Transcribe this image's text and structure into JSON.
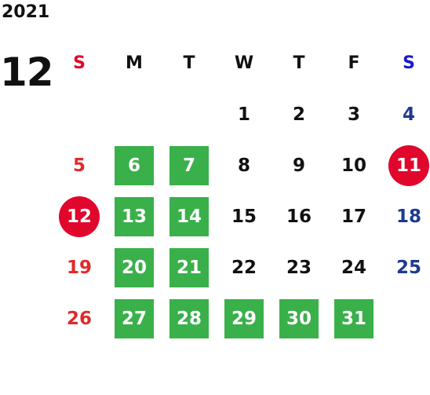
{
  "year": "2021",
  "month": "12",
  "weekdays": [
    {
      "label": "S",
      "color": "#e0062c"
    },
    {
      "label": "M",
      "color": "#111111"
    },
    {
      "label": "T",
      "color": "#111111"
    },
    {
      "label": "W",
      "color": "#111111"
    },
    {
      "label": "T",
      "color": "#111111"
    },
    {
      "label": "F",
      "color": "#111111"
    },
    {
      "label": "S",
      "color": "#1a1acc"
    }
  ],
  "weeks": [
    [
      null,
      null,
      null,
      {
        "d": "1"
      },
      {
        "d": "2"
      },
      {
        "d": "3"
      },
      {
        "d": "4"
      }
    ],
    [
      {
        "d": "5"
      },
      {
        "d": "6",
        "mark": "green"
      },
      {
        "d": "7",
        "mark": "green"
      },
      {
        "d": "8"
      },
      {
        "d": "9"
      },
      {
        "d": "10"
      },
      {
        "d": "11",
        "mark": "red"
      }
    ],
    [
      {
        "d": "12",
        "mark": "red"
      },
      {
        "d": "13",
        "mark": "green"
      },
      {
        "d": "14",
        "mark": "green"
      },
      {
        "d": "15"
      },
      {
        "d": "16"
      },
      {
        "d": "17"
      },
      {
        "d": "18"
      }
    ],
    [
      {
        "d": "19"
      },
      {
        "d": "20",
        "mark": "green"
      },
      {
        "d": "21",
        "mark": "green"
      },
      {
        "d": "22"
      },
      {
        "d": "23"
      },
      {
        "d": "24"
      },
      {
        "d": "25"
      }
    ],
    [
      {
        "d": "26"
      },
      {
        "d": "27",
        "mark": "green"
      },
      {
        "d": "28",
        "mark": "green"
      },
      {
        "d": "29",
        "mark": "green"
      },
      {
        "d": "30",
        "mark": "green"
      },
      {
        "d": "31",
        "mark": "green"
      },
      null
    ]
  ],
  "colors": {
    "green_mark": "#3ab04a",
    "red_mark": "#e0062c",
    "sunday": "#e02a2a",
    "saturday": "#1d3a8f"
  }
}
